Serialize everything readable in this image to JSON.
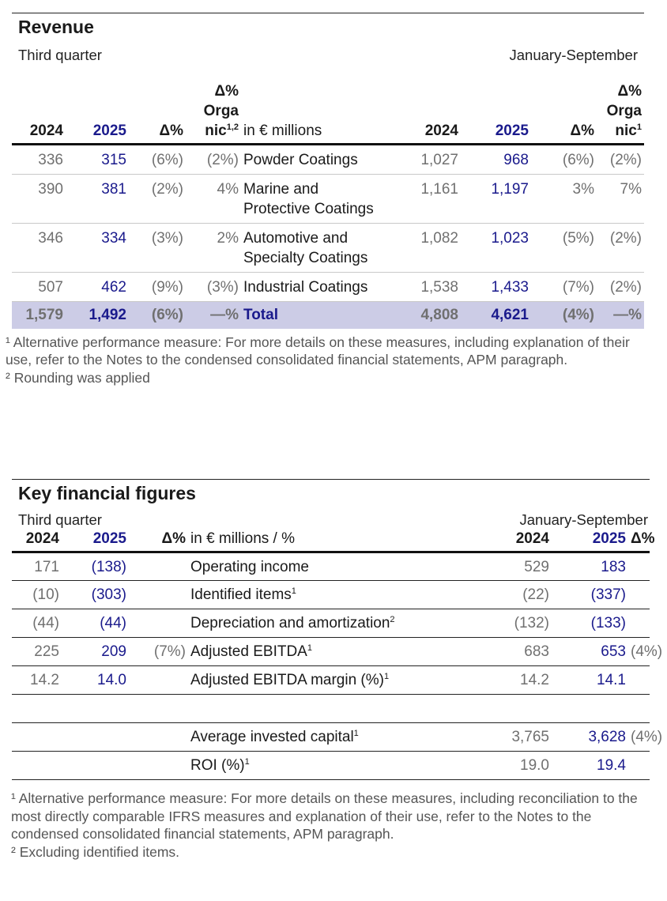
{
  "revenue": {
    "title": "Revenue",
    "left_period": "Third quarter",
    "right_period": "January-September",
    "headers": {
      "y1": "2024",
      "y2": "2025",
      "delta": "Δ%",
      "organic_l": "Δ% Orga nic",
      "organic_l_sup": "1,2",
      "label": "in € millions",
      "y3": "2024",
      "y4": "2025",
      "delta2": "Δ%",
      "organic_r": "Δ% Orga nic",
      "organic_r_sup": "1"
    },
    "rows": [
      {
        "q24": "336",
        "q25": "315",
        "qd": "(6%)",
        "qo": "(2%)",
        "label": "Powder Coatings",
        "y24": "1,027",
        "y25": "968",
        "yd": "(6%)",
        "yo": "(2%)"
      },
      {
        "q24": "390",
        "q25": "381",
        "qd": "(2%)",
        "qo": "4%",
        "label": "Marine and Protective Coatings",
        "y24": "1,161",
        "y25": "1,197",
        "yd": "3%",
        "yo": "7%"
      },
      {
        "q24": "346",
        "q25": "334",
        "qd": "(3%)",
        "qo": "2%",
        "label": "Automotive and Specialty Coatings",
        "y24": "1,082",
        "y25": "1,023",
        "yd": "(5%)",
        "yo": "(2%)"
      },
      {
        "q24": "507",
        "q25": "462",
        "qd": "(9%)",
        "qo": "(3%)",
        "label": "Industrial Coatings",
        "y24": "1,538",
        "y25": "1,433",
        "yd": "(7%)",
        "yo": "(2%)"
      }
    ],
    "total": {
      "q24": "1,579",
      "q25": "1,492",
      "qd": "(6%)",
      "qo": "—%",
      "label": "Total",
      "y24": "4,808",
      "y25": "4,621",
      "yd": "(4%)",
      "yo": "—%"
    },
    "footnotes": [
      "¹ Alternative performance measure: For more details on these measures, including explanation of their use, refer to the Notes to the condensed consolidated financial statements, APM paragraph.",
      "² Rounding was applied"
    ]
  },
  "kff": {
    "title": "Key financial figures",
    "left_period": "Third quarter",
    "right_period": "January-September",
    "headers": {
      "y1": "2024",
      "y2": "2025",
      "delta": "Δ%",
      "label": "in € millions / %",
      "y3": "2024",
      "y4": "2025",
      "delta2": "Δ%"
    },
    "rows": [
      {
        "q24": "171",
        "q25": "(138)",
        "qd": "",
        "label": "Operating income",
        "sup": "",
        "y24": "529",
        "y25": "183",
        "yd": ""
      },
      {
        "q24": "(10)",
        "q25": "(303)",
        "qd": "",
        "label": "Identified items",
        "sup": "1",
        "y24": "(22)",
        "y25": "(337)",
        "yd": ""
      },
      {
        "q24": "(44)",
        "q25": "(44)",
        "qd": "",
        "label": "Depreciation and amortization",
        "sup": "2",
        "y24": "(132)",
        "y25": "(133)",
        "yd": ""
      },
      {
        "q24": "225",
        "q25": "209",
        "qd": "(7%)",
        "label": "Adjusted EBITDA",
        "sup": "1",
        "y24": "683",
        "y25": "653",
        "yd": "(4%)"
      },
      {
        "q24": "14.2",
        "q25": "14.0",
        "qd": "",
        "label": "Adjusted EBITDA margin (%)",
        "sup": "1",
        "y24": "14.2",
        "y25": "14.1",
        "yd": ""
      }
    ],
    "rows2": [
      {
        "q24": "",
        "q25": "",
        "qd": "",
        "label": "Average invested capital",
        "sup": "1",
        "y24": "3,765",
        "y25": "3,628",
        "yd": "(4%)"
      },
      {
        "q24": "",
        "q25": "",
        "qd": "",
        "label": "ROI (%)",
        "sup": "1",
        "y24": "19.0",
        "y25": "19.4",
        "yd": ""
      }
    ],
    "footnotes": [
      "¹ Alternative performance measure: For more details on these measures, including reconciliation to the most directly comparable IFRS measures and explanation of their use, refer to the Notes to the condensed consolidated financial statements, APM paragraph.",
      "² Excluding identified items."
    ]
  },
  "colors": {
    "accent_blue": "#1a1a8c",
    "total_bg": "#cccce6",
    "muted": "#707070"
  }
}
